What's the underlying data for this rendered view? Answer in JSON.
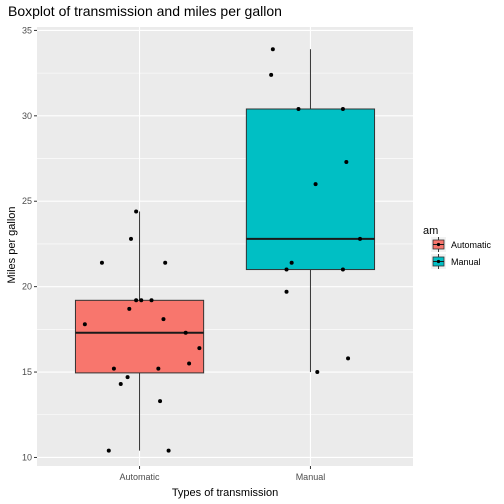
{
  "chart_data": {
    "type": "boxplot",
    "title": "Boxplot of transmission and miles per gallon",
    "xlabel": "Types of transmission",
    "ylabel": "Miles per gallon",
    "categories": [
      "Automatic",
      "Manual"
    ],
    "ylim": [
      9.5,
      35.2
    ],
    "yticks": [
      10,
      15,
      20,
      25,
      30,
      35
    ],
    "grid": true,
    "legend": {
      "title": "am",
      "placement": "right",
      "entries": [
        "Automatic",
        "Manual"
      ]
    },
    "colors": {
      "Automatic": "#F8766D",
      "Manual": "#00BFC4",
      "panel": "#EBEBEB",
      "grid": "#FFFFFF"
    },
    "series": [
      {
        "name": "Automatic",
        "box": {
          "min": 10.4,
          "q1": 14.95,
          "median": 17.3,
          "q3": 19.2,
          "max": 24.4
        },
        "points": [
          {
            "x": 0.68,
            "y": 17.8
          },
          {
            "x": 0.78,
            "y": 21.4
          },
          {
            "x": 0.82,
            "y": 10.4
          },
          {
            "x": 0.85,
            "y": 15.2
          },
          {
            "x": 0.89,
            "y": 14.3
          },
          {
            "x": 0.93,
            "y": 14.7
          },
          {
            "x": 0.94,
            "y": 18.7
          },
          {
            "x": 0.95,
            "y": 22.8
          },
          {
            "x": 0.98,
            "y": 19.2
          },
          {
            "x": 0.98,
            "y": 24.4
          },
          {
            "x": 1.01,
            "y": 19.2
          },
          {
            "x": 1.15,
            "y": 21.4
          },
          {
            "x": 1.07,
            "y": 19.2
          },
          {
            "x": 1.11,
            "y": 15.2
          },
          {
            "x": 1.12,
            "y": 13.3
          },
          {
            "x": 1.14,
            "y": 18.1
          },
          {
            "x": 1.17,
            "y": 10.4
          },
          {
            "x": 1.27,
            "y": 17.3
          },
          {
            "x": 1.29,
            "y": 15.5
          },
          {
            "x": 1.35,
            "y": 16.4
          }
        ]
      },
      {
        "name": "Manual",
        "box": {
          "min": 15.0,
          "q1": 21.0,
          "median": 22.8,
          "q3": 30.4,
          "max": 33.9
        },
        "points": [
          {
            "x": 1.78,
            "y": 33.9
          },
          {
            "x": 1.77,
            "y": 32.4
          },
          {
            "x": 1.86,
            "y": 21.0
          },
          {
            "x": 1.86,
            "y": 19.7
          },
          {
            "x": 1.89,
            "y": 21.4
          },
          {
            "x": 1.93,
            "y": 30.4
          },
          {
            "x": 2.03,
            "y": 26.0
          },
          {
            "x": 2.04,
            "y": 15.0
          },
          {
            "x": 2.19,
            "y": 30.4
          },
          {
            "x": 2.21,
            "y": 27.3
          },
          {
            "x": 2.19,
            "y": 21.0
          },
          {
            "x": 2.22,
            "y": 15.8
          },
          {
            "x": 2.29,
            "y": 22.8
          }
        ]
      }
    ]
  }
}
